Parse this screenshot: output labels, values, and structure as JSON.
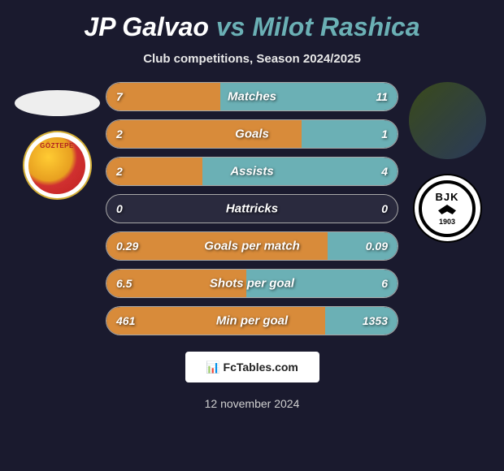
{
  "title": {
    "player1": "JP Galvao",
    "vs": "vs",
    "player2": "Milot Rashica"
  },
  "subtitle": "Club competitions, Season 2024/2025",
  "colors": {
    "player1_fill": "#d88b3a",
    "player2_fill": "#6bb0b5",
    "bar_border": "#a8a8a8",
    "bar_bg": "#2a2a3e",
    "bg": "#1a1a2e",
    "text": "#ffffff"
  },
  "teams": {
    "left": {
      "name": "Göztepe",
      "label": "GÖZTEPE"
    },
    "right": {
      "name": "Beşiktaş",
      "initials": "BJK",
      "year": "1903"
    }
  },
  "stats": [
    {
      "label": "Matches",
      "left_val": "7",
      "right_val": "11",
      "left_pct": 39,
      "right_pct": 61
    },
    {
      "label": "Goals",
      "left_val": "2",
      "right_val": "1",
      "left_pct": 67,
      "right_pct": 33
    },
    {
      "label": "Assists",
      "left_val": "2",
      "right_val": "4",
      "left_pct": 33,
      "right_pct": 67
    },
    {
      "label": "Hattricks",
      "left_val": "0",
      "right_val": "0",
      "left_pct": 0,
      "right_pct": 0
    },
    {
      "label": "Goals per match",
      "left_val": "0.29",
      "right_val": "0.09",
      "left_pct": 76,
      "right_pct": 24
    },
    {
      "label": "Shots per goal",
      "left_val": "6.5",
      "right_val": "6",
      "left_pct": 48,
      "right_pct": 52
    },
    {
      "label": "Min per goal",
      "left_val": "461",
      "right_val": "1353",
      "left_pct": 75,
      "right_pct": 25
    }
  ],
  "watermark": {
    "icon": "📊",
    "text": "FcTables.com"
  },
  "date": "12 november 2024"
}
